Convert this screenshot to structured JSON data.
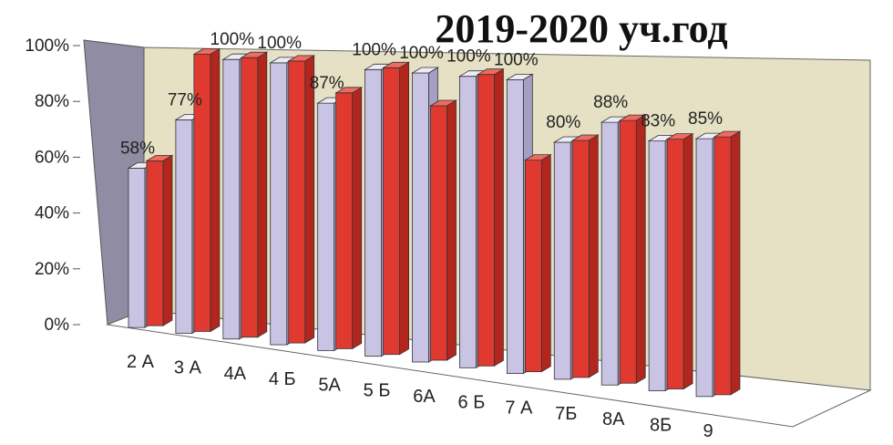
{
  "chart_data": {
    "type": "bar",
    "title": "2019-2020 уч.год",
    "categories": [
      "2 А",
      "3 А",
      "4А",
      "4 Б",
      "5А",
      "5 Б",
      "6А",
      "6 Б",
      "7 А",
      "7Б",
      "8А",
      "8Б",
      "9"
    ],
    "series": [
      {
        "values": [
          58,
          77,
          100,
          100,
          87,
          100,
          100,
          100,
          100,
          80,
          88,
          83,
          85
        ],
        "color": "#c9c3e4"
      },
      {
        "values": [
          60,
          100,
          100,
          100,
          90,
          100,
          88,
          100,
          72,
          80,
          88,
          83,
          85
        ],
        "color": "#e03a30"
      }
    ],
    "data_labels": [
      "58%",
      "77%",
      "100%",
      "100%",
      "87%",
      "100%",
      "100%",
      "100%",
      "100%",
      "80%",
      "88%",
      "83%",
      "85%"
    ],
    "ylim": [
      0,
      100
    ],
    "yticks": [
      "0%",
      "20%",
      "40%",
      "60%",
      "80%",
      "100%"
    ],
    "grid": false,
    "style": "3d-clustered-column",
    "colors": {
      "back_wall": "#e6e1c4",
      "side_wall": "#8f8ca3",
      "series1": "#c9c3e4",
      "series2": "#e03a30"
    }
  }
}
